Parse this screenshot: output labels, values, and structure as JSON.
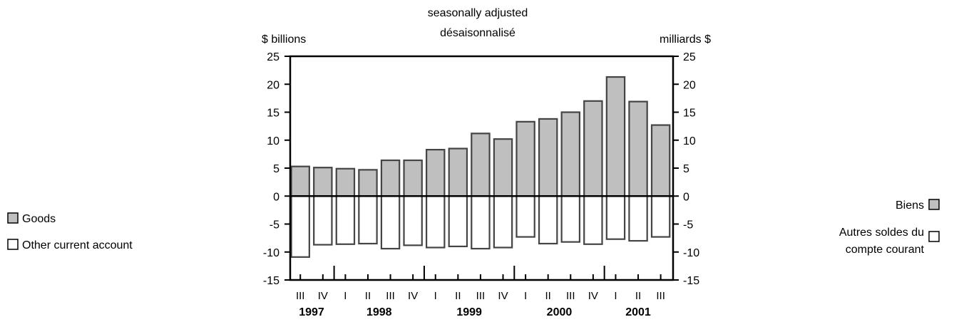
{
  "header": {
    "subtitle_en": "seasonally adjusted",
    "subtitle_fr": "désaisonnalisé",
    "unit_left": "$ billions",
    "unit_right": "milliards $"
  },
  "legend_left": {
    "goods": "Goods",
    "other": "Other current account"
  },
  "legend_right": {
    "goods": "Biens",
    "other_line1": "Autres soldes du",
    "other_line2": "compte courant"
  },
  "colors": {
    "goods_fill": "#bfbfbf",
    "other_fill": "#ffffff",
    "stroke": "#444444"
  },
  "chart_data": {
    "type": "bar",
    "ylim": [
      -15,
      25
    ],
    "yticks": [
      "25",
      "20",
      "15",
      "10",
      "5",
      "0",
      "-5",
      "-10",
      "-15"
    ],
    "categories": [
      "III",
      "IV",
      "I",
      "II",
      "III",
      "IV",
      "I",
      "II",
      "III",
      "IV",
      "I",
      "II",
      "III",
      "IV",
      "I",
      "II",
      "III"
    ],
    "years": [
      {
        "label": "1997",
        "start": 0,
        "end": 1
      },
      {
        "label": "1998",
        "start": 2,
        "end": 5
      },
      {
        "label": "1999",
        "start": 6,
        "end": 9
      },
      {
        "label": "2000",
        "start": 10,
        "end": 13
      },
      {
        "label": "2001",
        "start": 14,
        "end": 16
      }
    ],
    "series": [
      {
        "name": "Goods",
        "values": [
          5.3,
          5.1,
          4.9,
          4.7,
          6.4,
          6.4,
          8.3,
          8.5,
          11.2,
          10.2,
          13.3,
          13.8,
          15.0,
          17.0,
          21.3,
          16.9,
          12.7
        ]
      },
      {
        "name": "Other current account",
        "values": [
          -10.9,
          -8.7,
          -8.6,
          -8.5,
          -9.4,
          -8.8,
          -9.2,
          -9.0,
          -9.4,
          -9.2,
          -7.3,
          -8.5,
          -8.2,
          -8.6,
          -7.7,
          -8.0,
          -7.3
        ]
      }
    ]
  }
}
